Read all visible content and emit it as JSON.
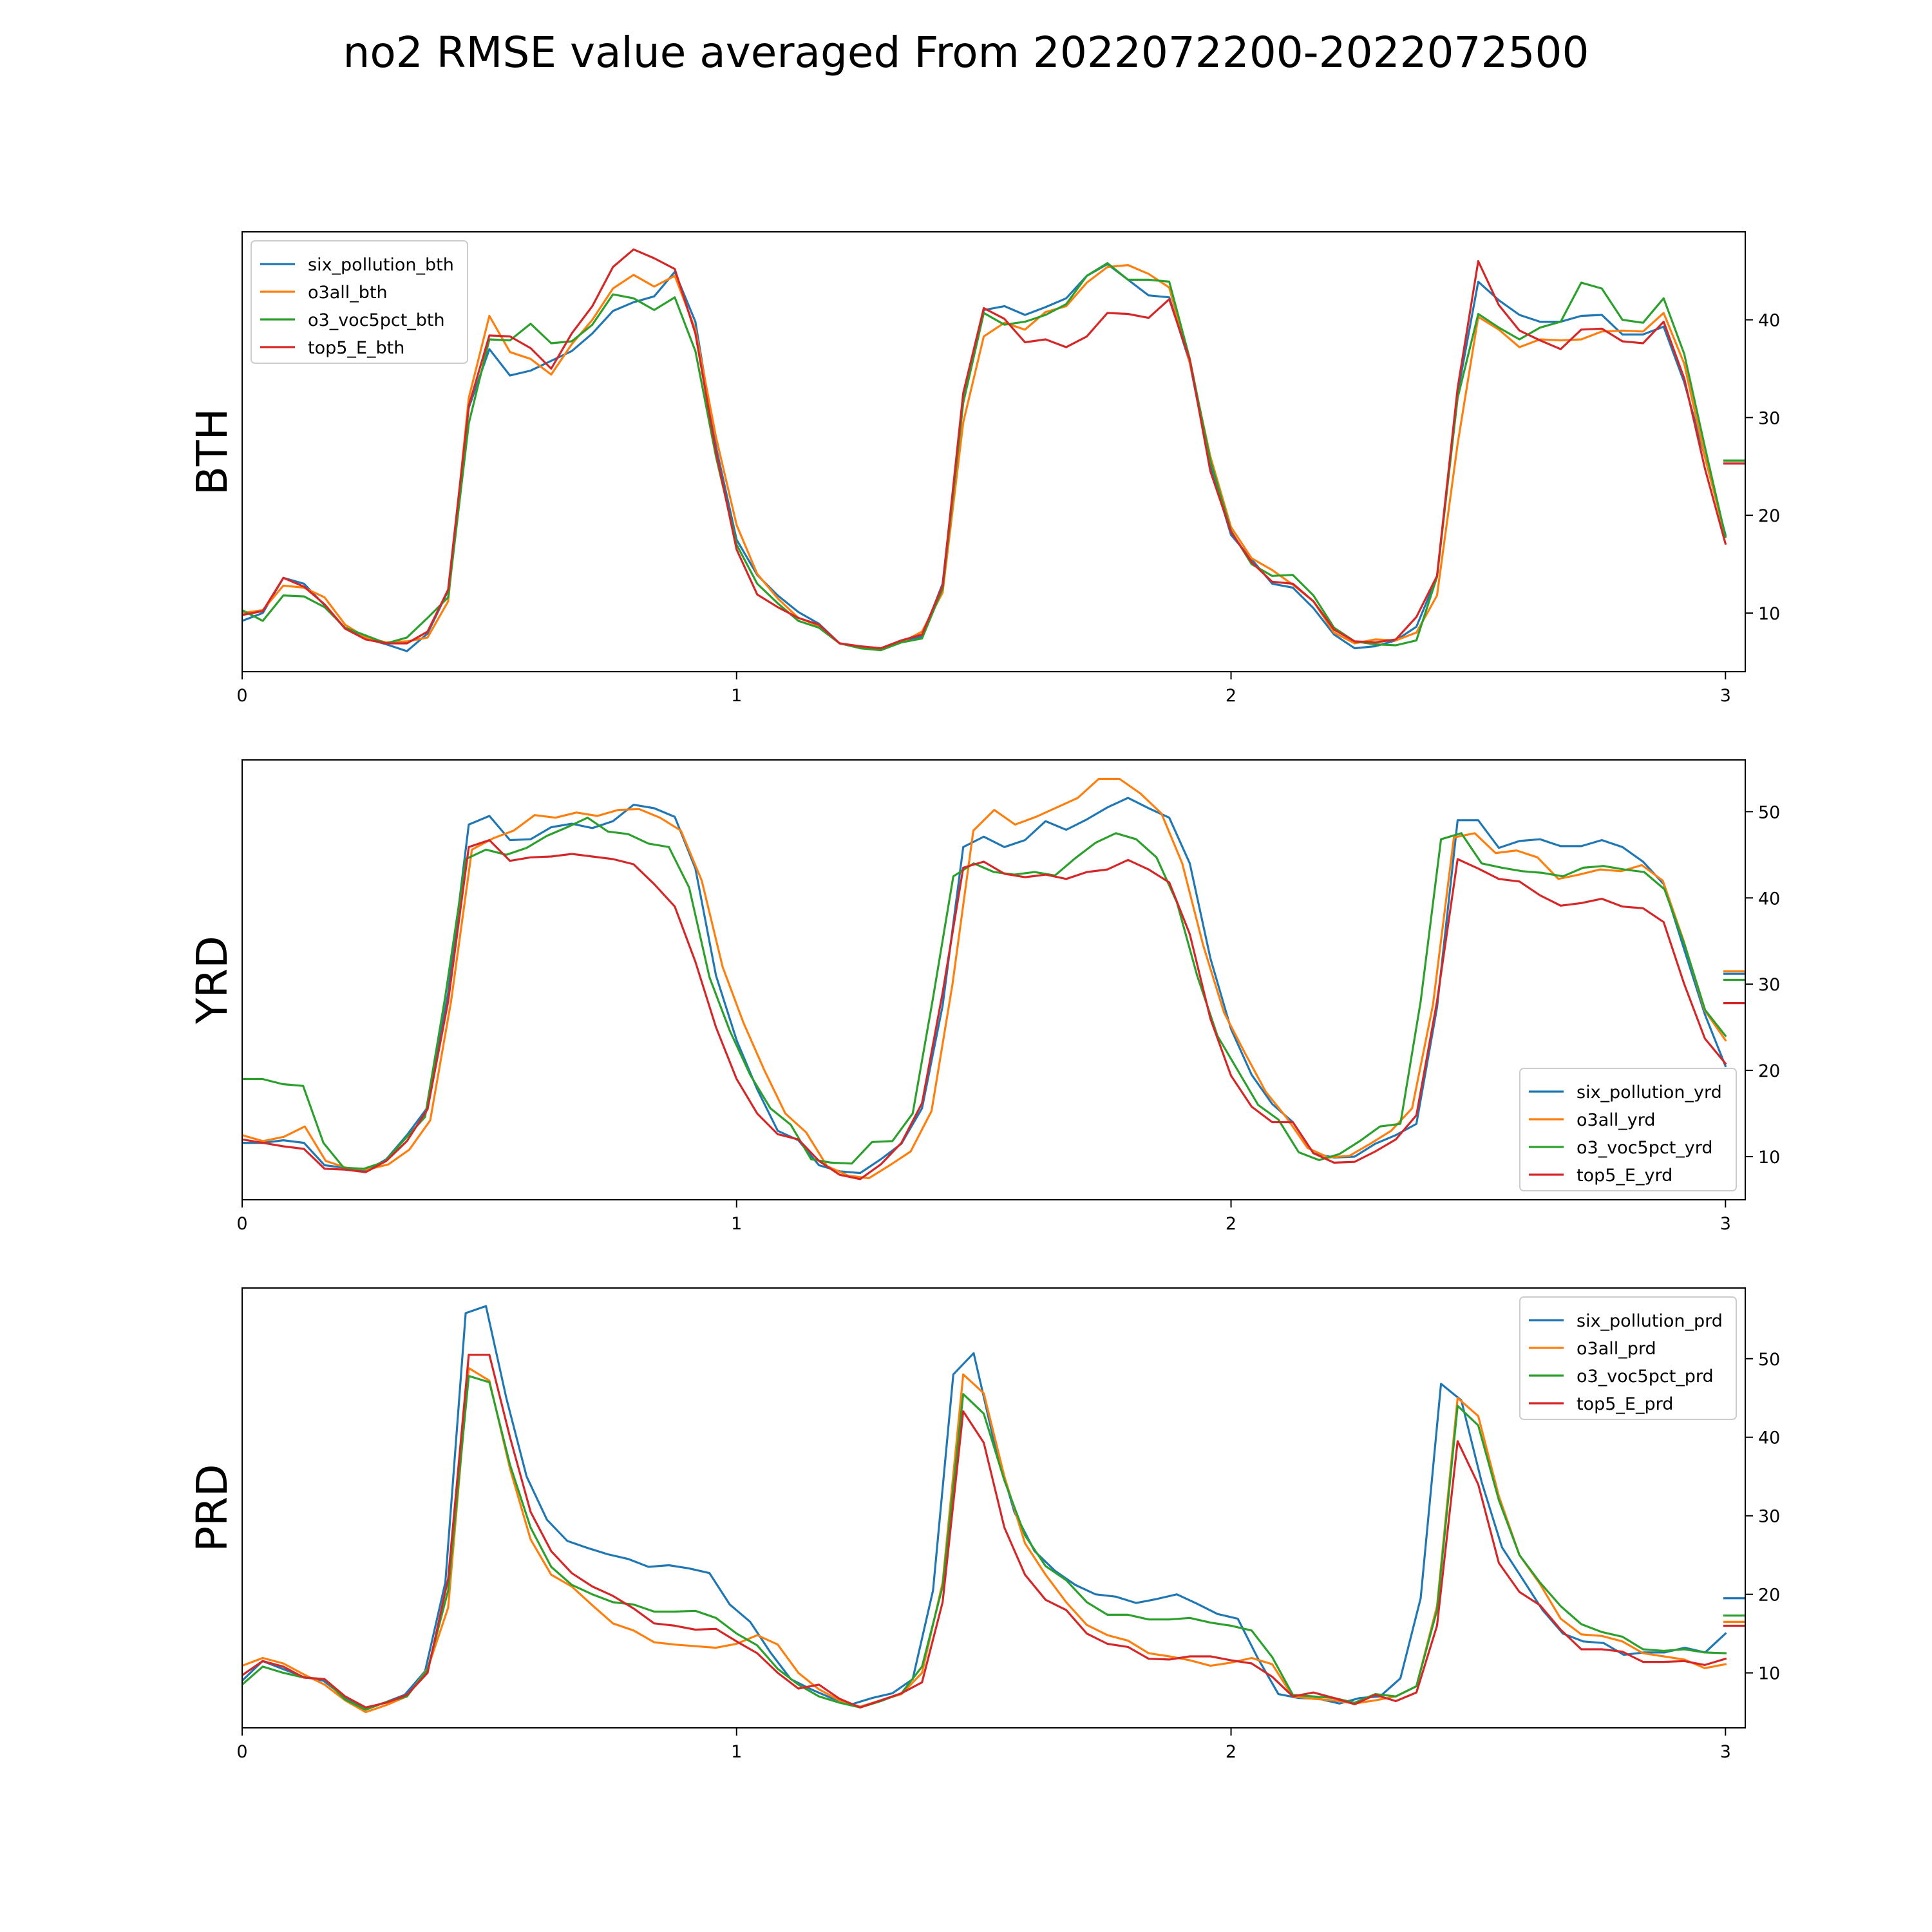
{
  "figure": {
    "title": "no2 RMSE value averaged From 2022072200-2022072500"
  },
  "chart_data": [
    {
      "type": "line",
      "panel_label": "BTH",
      "xlim": [
        0,
        3.04
      ],
      "ylim": [
        4,
        49
      ],
      "x_ticks": [
        0,
        1,
        2,
        3
      ],
      "y_ticks": [
        10,
        20,
        30,
        40
      ],
      "y_axis_side": "right",
      "grid": false,
      "legend_position": "upper-left",
      "colors": [
        "#1f77b4",
        "#ff7f0e",
        "#2ca02c",
        "#d62728"
      ],
      "series": [
        {
          "name": "six_pollution_bth",
          "values": [
            9.2,
            10.0,
            13.6,
            13.0,
            10.8,
            8.4,
            7.4,
            6.8,
            6.1,
            7.9,
            12.3,
            31.0,
            37.0,
            34.3,
            34.8,
            35.8,
            36.8,
            38.6,
            40.9,
            41.8,
            42.4,
            44.9,
            39.8,
            27.0,
            17.5,
            13.9,
            11.8,
            10.1,
            8.9,
            6.9,
            6.5,
            6.4,
            7.2,
            7.6,
            13.0,
            31.8,
            41.0,
            41.4,
            40.5,
            41.3,
            42.2,
            44.5,
            45.7,
            44.1,
            42.5,
            42.3,
            35.6,
            25.0,
            18.0,
            15.5,
            13.0,
            12.6,
            10.5,
            7.8,
            6.4,
            6.6,
            7.2,
            8.6,
            13.7,
            32.5,
            43.9,
            42.0,
            40.5,
            39.8,
            39.8,
            40.4,
            40.5,
            38.5,
            38.5,
            39.3,
            33.6,
            26.0,
            18.0
          ],
          "unlabeled_end_value": 25.3
        },
        {
          "name": "o3all_bth",
          "values": [
            10.0,
            10.3,
            12.8,
            12.6,
            11.6,
            8.8,
            7.5,
            7.0,
            7.1,
            7.5,
            11.2,
            32.0,
            40.4,
            36.7,
            36.0,
            34.4,
            37.5,
            40.0,
            43.2,
            44.6,
            43.4,
            44.5,
            39.0,
            28.0,
            19.0,
            14.0,
            11.5,
            9.5,
            8.7,
            6.9,
            6.5,
            6.4,
            7.0,
            8.1,
            12.1,
            29.5,
            38.3,
            39.7,
            39.0,
            40.8,
            41.4,
            43.8,
            45.4,
            45.6,
            44.7,
            43.3,
            35.6,
            26.0,
            18.8,
            15.6,
            14.4,
            12.9,
            11.2,
            8.0,
            6.9,
            7.3,
            7.2,
            8.0,
            11.8,
            27.3,
            40.3,
            39.0,
            37.2,
            38.0,
            37.9,
            38.0,
            38.8,
            38.9,
            38.8,
            40.7,
            35.5,
            26.0,
            17.8
          ],
          "unlabeled_end_value": 25.6
        },
        {
          "name": "o3_voc5pct_bth",
          "values": [
            10.3,
            9.2,
            11.8,
            11.7,
            10.6,
            8.5,
            7.7,
            6.9,
            7.5,
            9.5,
            11.6,
            29.4,
            38.0,
            37.9,
            39.6,
            37.6,
            37.8,
            39.5,
            42.6,
            42.2,
            41.0,
            42.3,
            36.8,
            26.0,
            17.0,
            13.0,
            11.0,
            9.2,
            8.5,
            6.9,
            6.4,
            6.2,
            7.0,
            7.4,
            12.5,
            31.5,
            40.7,
            39.5,
            39.8,
            40.5,
            41.6,
            44.5,
            45.8,
            44.1,
            44.1,
            43.9,
            36.0,
            25.6,
            18.4,
            15.0,
            13.8,
            13.9,
            11.8,
            8.5,
            7.1,
            6.8,
            6.7,
            7.2,
            13.7,
            32.0,
            40.6,
            39.2,
            38.0,
            39.2,
            39.8,
            43.8,
            43.2,
            40.0,
            39.7,
            42.2,
            36.5,
            27.0,
            17.8
          ],
          "unlabeled_end_value": 25.6
        },
        {
          "name": "top5_E_bth",
          "values": [
            9.8,
            10.2,
            13.6,
            12.7,
            10.9,
            8.4,
            7.3,
            6.9,
            6.9,
            8.1,
            12.4,
            31.2,
            38.4,
            38.3,
            37.1,
            35.0,
            38.6,
            41.4,
            45.4,
            47.2,
            46.3,
            45.2,
            38.6,
            26.5,
            16.5,
            11.9,
            10.6,
            9.5,
            8.8,
            6.9,
            6.6,
            6.4,
            7.2,
            7.8,
            12.8,
            32.5,
            41.2,
            40.1,
            37.7,
            38.0,
            37.2,
            38.3,
            40.7,
            40.6,
            40.2,
            42.1,
            35.9,
            24.5,
            18.3,
            15.2,
            13.2,
            13.0,
            11.2,
            8.3,
            7.1,
            7.0,
            7.3,
            9.6,
            13.8,
            33.0,
            46.0,
            41.5,
            38.9,
            37.9,
            37.0,
            39.0,
            39.1,
            37.8,
            37.6,
            39.8,
            34.0,
            24.8,
            17.1
          ],
          "unlabeled_end_value": 25.3
        }
      ]
    },
    {
      "type": "line",
      "panel_label": "YRD",
      "xlim": [
        0,
        3.04
      ],
      "ylim": [
        5,
        56
      ],
      "x_ticks": [
        0,
        1,
        2,
        3
      ],
      "y_ticks": [
        10,
        20,
        30,
        40,
        50
      ],
      "y_axis_side": "right",
      "grid": false,
      "legend_position": "lower-right",
      "colors": [
        "#1f77b4",
        "#ff7f0e",
        "#2ca02c",
        "#d62728"
      ],
      "series": [
        {
          "name": "six_pollution_yrd",
          "values": [
            11.6,
            11.6,
            11.9,
            11.6,
            9.0,
            8.7,
            8.3,
            9.7,
            12.5,
            15.7,
            29.0,
            48.5,
            49.5,
            46.7,
            46.8,
            48.2,
            48.6,
            48.1,
            48.9,
            50.8,
            50.4,
            49.4,
            43.4,
            31.0,
            23.5,
            17.8,
            13.0,
            11.9,
            9.0,
            8.3,
            8.1,
            9.7,
            11.5,
            15.6,
            27.5,
            45.9,
            47.1,
            45.9,
            46.7,
            48.9,
            47.9,
            49.1,
            50.5,
            51.6,
            50.4,
            49.3,
            44.0,
            33.0,
            24.8,
            19.5,
            16.1,
            14.0,
            10.4,
            9.9,
            10.0,
            11.5,
            12.5,
            13.8,
            27.3,
            49.0,
            49.0,
            45.8,
            46.6,
            46.8,
            46.0,
            46.0,
            46.7,
            45.9,
            44.2,
            41.6,
            34.0,
            26.5,
            20.5
          ],
          "unlabeled_end_value": 31.2
        },
        {
          "name": "o3all_yrd",
          "values": [
            12.5,
            11.8,
            12.3,
            13.5,
            9.5,
            8.7,
            8.5,
            9.1,
            10.8,
            14.2,
            28.0,
            45.6,
            46.9,
            47.8,
            49.6,
            49.3,
            49.9,
            49.5,
            50.2,
            50.3,
            49.3,
            47.8,
            42.0,
            32.0,
            25.5,
            20.0,
            15.0,
            12.8,
            8.9,
            7.8,
            7.5,
            9.0,
            10.6,
            15.3,
            30.0,
            47.8,
            50.2,
            48.5,
            49.4,
            50.5,
            51.6,
            53.8,
            53.8,
            52.1,
            49.8,
            44.0,
            34.5,
            26.7,
            22.0,
            17.5,
            14.5,
            11.0,
            9.9,
            10.1,
            11.5,
            13.0,
            15.6,
            27.6,
            47.0,
            47.5,
            45.2,
            45.5,
            44.7,
            42.2,
            42.7,
            43.3,
            43.1,
            43.8,
            42.0,
            35.0,
            27.0,
            23.5
          ],
          "unlabeled_end_value": 31.5
        },
        {
          "name": "o3_voc5pct_yrd",
          "values": [
            19.0,
            19.0,
            18.4,
            18.2,
            11.6,
            8.7,
            8.6,
            9.4,
            12.0,
            14.6,
            28.6,
            44.5,
            45.6,
            45.0,
            45.8,
            47.2,
            48.2,
            49.3,
            47.7,
            47.4,
            46.3,
            45.9,
            41.2,
            30.8,
            24.6,
            19.5,
            15.6,
            13.7,
            9.7,
            9.3,
            9.2,
            11.7,
            11.8,
            15.0,
            28.4,
            42.5,
            44.0,
            43.0,
            42.7,
            43.0,
            42.6,
            44.6,
            46.4,
            47.5,
            46.8,
            44.7,
            39.5,
            31.0,
            24.0,
            20.0,
            16.0,
            14.3,
            10.5,
            9.6,
            10.3,
            11.8,
            13.5,
            13.8,
            28.0,
            46.8,
            47.5,
            44.0,
            43.5,
            43.1,
            42.9,
            42.5,
            43.5,
            43.7,
            43.3,
            43.0,
            41.0,
            34.5,
            27.0,
            24.0
          ],
          "unlabeled_end_value": 30.5
        },
        {
          "name": "top5_E_yrd",
          "values": [
            12.0,
            11.6,
            11.2,
            10.9,
            8.6,
            8.5,
            8.2,
            9.5,
            11.8,
            15.5,
            28.0,
            45.9,
            46.7,
            44.3,
            44.7,
            44.8,
            45.1,
            44.8,
            44.5,
            43.9,
            41.6,
            39.0,
            32.6,
            25.0,
            19.0,
            15.0,
            12.6,
            12.0,
            9.5,
            7.9,
            7.4,
            9.1,
            11.6,
            16.2,
            29.0,
            43.5,
            44.2,
            42.8,
            42.4,
            42.7,
            42.2,
            43.0,
            43.3,
            44.4,
            43.3,
            41.8,
            35.8,
            26.0,
            19.4,
            15.8,
            14.0,
            14.0,
            10.4,
            9.3,
            9.4,
            10.6,
            12.0,
            14.8,
            28.0,
            44.5,
            43.4,
            42.2,
            41.9,
            40.3,
            39.1,
            39.4,
            39.9,
            39.0,
            38.8,
            37.2,
            30.0,
            23.7,
            20.8
          ],
          "unlabeled_end_value": 27.8
        }
      ]
    },
    {
      "type": "line",
      "panel_label": "PRD",
      "xlim": [
        0,
        3.04
      ],
      "ylim": [
        3,
        59
      ],
      "x_ticks": [
        0,
        1,
        2,
        3
      ],
      "y_ticks": [
        10,
        20,
        30,
        40,
        50
      ],
      "y_axis_side": "right",
      "grid": false,
      "legend_position": "upper-right",
      "colors": [
        "#1f77b4",
        "#ff7f0e",
        "#2ca02c",
        "#d62728"
      ],
      "series": [
        {
          "name": "six_pollution_prd",
          "values": [
            9.0,
            11.5,
            10.5,
            9.5,
            9.0,
            7.0,
            5.4,
            6.2,
            7.2,
            10.2,
            21.5,
            55.8,
            56.7,
            45.0,
            35.0,
            29.5,
            26.8,
            25.9,
            25.1,
            24.5,
            23.5,
            23.7,
            23.3,
            22.7,
            18.7,
            16.5,
            12.6,
            9.2,
            7.9,
            6.8,
            6.0,
            6.8,
            7.4,
            9.2,
            20.5,
            48.0,
            50.7,
            39.5,
            30.5,
            25.5,
            23.0,
            21.2,
            20.0,
            19.7,
            18.9,
            19.4,
            20.0,
            18.8,
            17.5,
            16.9,
            11.8,
            7.3,
            6.8,
            6.7,
            6.1,
            6.8,
            7.0,
            9.3,
            19.5,
            46.8,
            44.7,
            34.3,
            26.0,
            22.0,
            18.0,
            15.0,
            14.0,
            13.8,
            12.3,
            12.6,
            12.6,
            13.2,
            12.6,
            15.0
          ],
          "unlabeled_end_value": 19.5
        },
        {
          "name": "o3all_prd",
          "values": [
            10.9,
            11.9,
            11.2,
            9.8,
            8.5,
            6.5,
            5.0,
            5.9,
            7.0,
            10.5,
            18.3,
            48.8,
            47.2,
            36.0,
            27.0,
            22.5,
            21.0,
            18.6,
            16.3,
            15.4,
            13.9,
            13.6,
            13.4,
            13.2,
            13.7,
            14.8,
            13.6,
            10.0,
            7.9,
            6.5,
            5.7,
            6.5,
            7.3,
            10.0,
            21.5,
            48.0,
            45.6,
            35.0,
            26.5,
            22.5,
            19.0,
            16.1,
            14.8,
            14.1,
            12.5,
            12.1,
            11.6,
            10.9,
            11.3,
            11.9,
            11.1,
            7.0,
            6.7,
            6.5,
            6.1,
            6.5,
            7.0,
            8.3,
            18.5,
            45.0,
            42.7,
            32.5,
            25.0,
            21.3,
            16.9,
            14.9,
            14.7,
            14.0,
            12.5,
            12.1,
            11.7,
            10.6,
            11.1
          ],
          "unlabeled_end_value": 16.5
        },
        {
          "name": "o3_voc5pct_prd",
          "values": [
            8.5,
            10.8,
            10.0,
            9.4,
            9.2,
            6.6,
            5.3,
            6.3,
            7.0,
            10.4,
            20.5,
            47.8,
            47.0,
            36.5,
            28.5,
            23.5,
            21.2,
            20.0,
            19.0,
            18.7,
            17.8,
            17.8,
            17.9,
            17.0,
            15.0,
            13.5,
            10.5,
            8.5,
            7.0,
            6.2,
            5.6,
            6.4,
            7.4,
            10.8,
            21.0,
            45.5,
            43.0,
            34.5,
            27.5,
            23.6,
            21.8,
            19.0,
            17.4,
            17.4,
            16.8,
            16.8,
            17.0,
            16.4,
            16.0,
            15.4,
            12.0,
            7.2,
            7.0,
            6.8,
            6.2,
            7.3,
            7.0,
            8.3,
            18.0,
            44.0,
            41.5,
            32.0,
            25.0,
            21.5,
            18.5,
            16.2,
            15.2,
            14.6,
            13.0,
            12.8,
            13.0,
            12.6,
            12.5
          ],
          "unlabeled_end_value": 17.3
        },
        {
          "name": "top5_E_prd",
          "values": [
            9.7,
            11.5,
            10.8,
            9.4,
            9.2,
            7.0,
            5.6,
            6.2,
            7.2,
            10.0,
            22.0,
            50.5,
            50.5,
            40.0,
            30.5,
            25.5,
            22.7,
            21.0,
            19.8,
            18.2,
            16.3,
            16.0,
            15.5,
            15.6,
            14.0,
            12.5,
            10.0,
            8.0,
            8.5,
            6.7,
            5.6,
            6.5,
            7.4,
            8.8,
            19.0,
            43.3,
            39.3,
            28.5,
            22.5,
            19.3,
            18.0,
            15.0,
            13.7,
            13.3,
            11.8,
            11.7,
            12.1,
            12.1,
            11.6,
            11.2,
            9.5,
            7.0,
            7.5,
            6.8,
            6.0,
            7.2,
            6.4,
            7.5,
            16.0,
            39.5,
            34.0,
            24.0,
            20.3,
            18.6,
            15.5,
            13.0,
            13.0,
            12.7,
            11.4,
            11.4,
            11.5,
            11.0,
            11.8
          ],
          "unlabeled_end_value": 16.0
        }
      ]
    }
  ]
}
